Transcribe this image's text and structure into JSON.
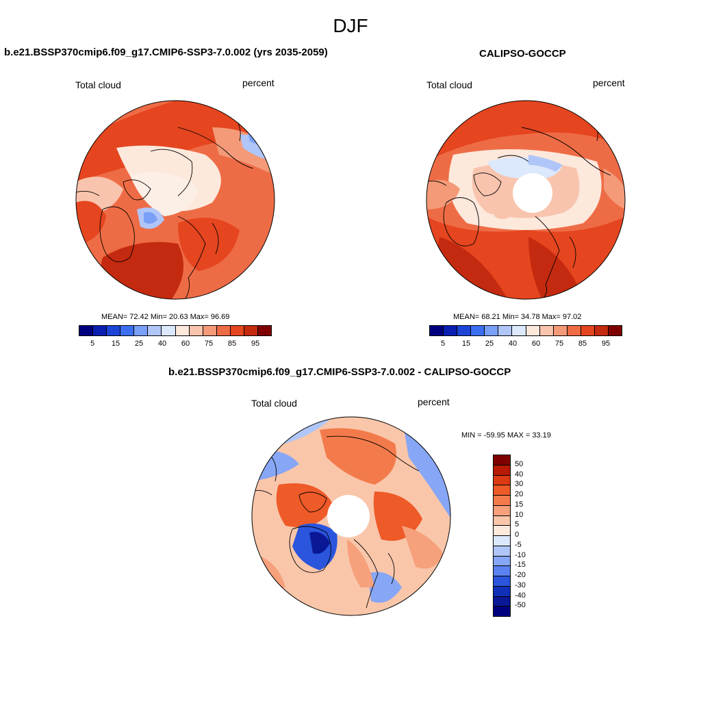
{
  "main_title": "DJF",
  "palette": [
    "#00007f",
    "#0a1fb0",
    "#1c45d8",
    "#3b6ff0",
    "#7a9ff6",
    "#b0c6f8",
    "#dce8fb",
    "#fde8dc",
    "#f8c4ad",
    "#f49a78",
    "#ee6c45",
    "#e5451f",
    "#c42a0f",
    "#7f0000"
  ],
  "panels": {
    "model": {
      "title": "b.e21.BSSP370cmip6.f09_g17.CMIP6-SSP3-7.0.002 (yrs 2035-2059)",
      "left_label": "Total cloud",
      "right_label": "percent",
      "stats": "MEAN=  72.42   Min=  20.63   Max=  96.69",
      "ticks": [
        "5",
        "15",
        "25",
        "40",
        "60",
        "75",
        "85",
        "95"
      ]
    },
    "obs": {
      "title": "CALIPSO-GOCCP",
      "left_label": "Total cloud",
      "right_label": "percent",
      "stats": "MEAN=  68.21   Min=  34.78   Max=  97.02",
      "ticks": [
        "5",
        "15",
        "25",
        "40",
        "60",
        "75",
        "85",
        "95"
      ]
    },
    "diff": {
      "title": "b.e21.BSSP370cmip6.f09_g17.CMIP6-SSP3-7.0.002 - CALIPSO-GOCCP",
      "left_label": "Total cloud",
      "right_label": "percent",
      "minmax": "MIN = -59.95 MAX =  33.19",
      "ticks": [
        "50",
        "40",
        "30",
        "20",
        "15",
        "10",
        "5",
        "0",
        "-5",
        "-10",
        "-15",
        "-20",
        "-30",
        "-40",
        "-50"
      ],
      "palette": [
        "#7f0000",
        "#b81a05",
        "#dc3a12",
        "#ee5a28",
        "#f37b4b",
        "#f6a07c",
        "#f9c6aa",
        "#fde8dc",
        "#dce8fb",
        "#b0c6f8",
        "#87a6f5",
        "#5a82f0",
        "#2a55dc",
        "#1030b8",
        "#0a1896",
        "#00007f"
      ]
    }
  }
}
